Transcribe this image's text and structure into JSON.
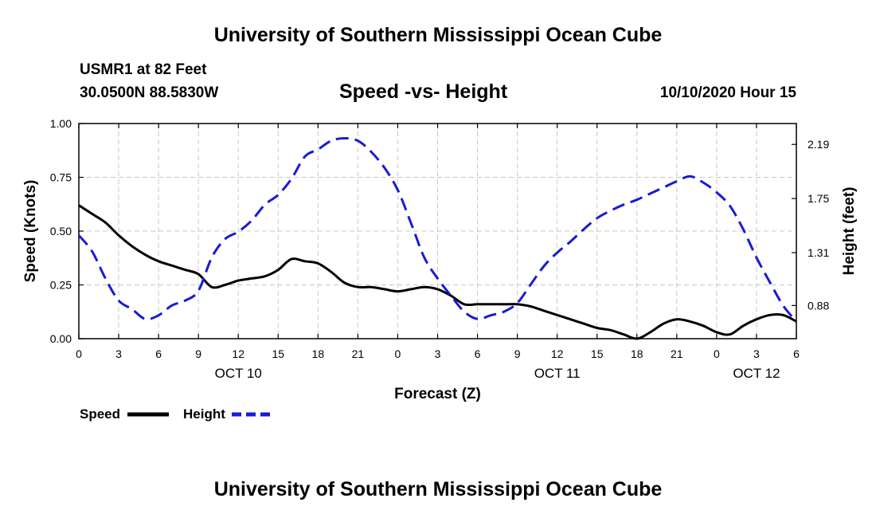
{
  "header": {
    "title_top": "University of Southern Mississippi Ocean Cube",
    "station": "USMR1 at 82 Feet",
    "coords": "30.0500N 88.5830W",
    "subtitle": "Speed -vs- Height",
    "datetime": "10/10/2020 Hour 15"
  },
  "footer": {
    "title_bottom": "University of Southern Mississippi Ocean Cube"
  },
  "chart_data": {
    "type": "line",
    "title": "Speed -vs- Height",
    "xlabel": "Forecast (Z)",
    "ylabel": "Speed (Knots)",
    "ylabel_right": "Height (feet)",
    "x_unit": "hours from OCT 10 00Z",
    "xlim": [
      0,
      54
    ],
    "ylim": [
      0,
      1.0
    ],
    "ylim_right": [
      0.61,
      2.36
    ],
    "x_ticks": [
      {
        "x": 0,
        "label": "0"
      },
      {
        "x": 3,
        "label": "3"
      },
      {
        "x": 6,
        "label": "6"
      },
      {
        "x": 9,
        "label": "9"
      },
      {
        "x": 12,
        "label": "12"
      },
      {
        "x": 15,
        "label": "15"
      },
      {
        "x": 18,
        "label": "18"
      },
      {
        "x": 21,
        "label": "21"
      },
      {
        "x": 24,
        "label": "0"
      },
      {
        "x": 27,
        "label": "3"
      },
      {
        "x": 30,
        "label": "6"
      },
      {
        "x": 33,
        "label": "9"
      },
      {
        "x": 36,
        "label": "12"
      },
      {
        "x": 39,
        "label": "15"
      },
      {
        "x": 42,
        "label": "18"
      },
      {
        "x": 45,
        "label": "21"
      },
      {
        "x": 48,
        "label": "0"
      },
      {
        "x": 51,
        "label": "3"
      },
      {
        "x": 54,
        "label": "6"
      }
    ],
    "day_labels": [
      {
        "x": 12,
        "label": "OCT 10"
      },
      {
        "x": 36,
        "label": "OCT 11"
      },
      {
        "x": 51,
        "label": "OCT 12"
      }
    ],
    "y_ticks": [
      {
        "y": 0.0,
        "label": "0.00"
      },
      {
        "y": 0.25,
        "label": "0.25"
      },
      {
        "y": 0.5,
        "label": "0.50"
      },
      {
        "y": 0.75,
        "label": "0.75"
      },
      {
        "y": 1.0,
        "label": "1.00"
      }
    ],
    "y_ticks_right": [
      {
        "y": 0.88,
        "label": "0.88"
      },
      {
        "y": 1.31,
        "label": "1.31"
      },
      {
        "y": 1.75,
        "label": "1.75"
      },
      {
        "y": 2.19,
        "label": "2.19"
      }
    ],
    "grid": true,
    "legend": {
      "position": "bottom-left"
    },
    "series": [
      {
        "name": "Speed",
        "axis": "left",
        "color": "#000000",
        "style": "solid",
        "x": [
          0,
          1,
          2,
          3,
          4,
          5,
          6,
          7,
          8,
          9,
          10,
          11,
          12,
          13,
          14,
          15,
          16,
          17,
          18,
          19,
          20,
          21,
          22,
          23,
          24,
          25,
          26,
          27,
          28,
          29,
          30,
          31,
          32,
          33,
          34,
          35,
          36,
          37,
          38,
          39,
          40,
          41,
          42,
          43,
          44,
          45,
          46,
          47,
          48,
          49,
          50,
          51,
          52,
          53,
          54
        ],
        "values": [
          0.62,
          0.58,
          0.54,
          0.48,
          0.43,
          0.39,
          0.36,
          0.34,
          0.32,
          0.3,
          0.24,
          0.25,
          0.27,
          0.28,
          0.29,
          0.32,
          0.37,
          0.36,
          0.35,
          0.31,
          0.26,
          0.24,
          0.24,
          0.23,
          0.22,
          0.23,
          0.24,
          0.23,
          0.2,
          0.16,
          0.16,
          0.16,
          0.16,
          0.16,
          0.15,
          0.13,
          0.11,
          0.09,
          0.07,
          0.05,
          0.04,
          0.02,
          0.0,
          0.03,
          0.07,
          0.09,
          0.08,
          0.06,
          0.03,
          0.02,
          0.06,
          0.09,
          0.11,
          0.11,
          0.08
        ]
      },
      {
        "name": "Height",
        "axis": "right",
        "color": "#1a1ad6",
        "style": "dashed",
        "x": [
          0,
          1,
          2,
          3,
          4,
          5,
          6,
          7,
          8,
          9,
          10,
          11,
          12,
          13,
          14,
          15,
          16,
          17,
          18,
          19,
          20,
          21,
          22,
          23,
          24,
          25,
          26,
          27,
          28,
          29,
          30,
          31,
          32,
          33,
          34,
          35,
          36,
          37,
          38,
          39,
          40,
          41,
          42,
          43,
          44,
          45,
          46,
          47,
          48,
          49,
          50,
          51,
          52,
          53,
          54
        ],
        "values": [
          1.45,
          1.32,
          1.1,
          0.92,
          0.85,
          0.77,
          0.8,
          0.88,
          0.92,
          1.0,
          1.27,
          1.42,
          1.48,
          1.57,
          1.7,
          1.78,
          1.91,
          2.09,
          2.15,
          2.22,
          2.24,
          2.22,
          2.13,
          2.0,
          1.82,
          1.55,
          1.27,
          1.1,
          0.96,
          0.83,
          0.77,
          0.8,
          0.83,
          0.9,
          1.05,
          1.2,
          1.31,
          1.4,
          1.5,
          1.59,
          1.65,
          1.7,
          1.74,
          1.79,
          1.84,
          1.89,
          1.93,
          1.88,
          1.8,
          1.69,
          1.5,
          1.27,
          1.07,
          0.88,
          0.75
        ]
      }
    ]
  }
}
